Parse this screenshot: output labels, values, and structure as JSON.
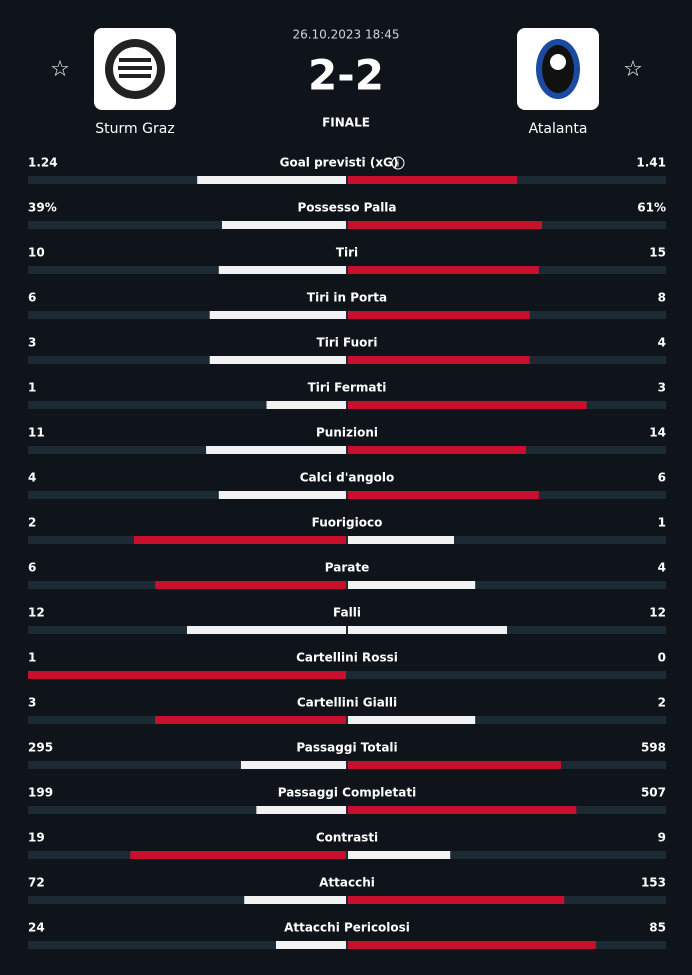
{
  "header": {
    "datetime": "26.10.2023 18:45",
    "score": "2-2",
    "status": "FINALE",
    "home_team": "Sturm Graz",
    "away_team": "Atalanta"
  },
  "stats": [
    {
      "name": "Goal previsti (xG)",
      "home": 1.24,
      "away": 1.41
    },
    {
      "name": "Possesso Palla",
      "home": {
        "value": 39,
        "label": "39%"
      },
      "away": {
        "value": 61,
        "label": "61%"
      }
    },
    {
      "name": "Tiri",
      "home": 10,
      "away": 15
    },
    {
      "name": "Tiri in Porta",
      "home": 6,
      "away": 8
    },
    {
      "name": "Tiri Fuori",
      "home": 3,
      "away": 4
    },
    {
      "name": "Tiri Fermati",
      "home": 1,
      "away": 3
    },
    {
      "name": "Punizioni",
      "home": 11,
      "away": 14
    },
    {
      "name": "Calci d'angolo",
      "home": 4,
      "away": 6
    },
    {
      "name": "Fuorigioco",
      "home": 2,
      "away": 1
    },
    {
      "name": "Parate",
      "home": 6,
      "away": 4
    },
    {
      "name": "Falli",
      "home": 12,
      "away": 12
    },
    {
      "name": "Cartellini Rossi",
      "home": 1,
      "away": 0
    },
    {
      "name": "Cartellini Gialli",
      "home": 3,
      "away": 2
    },
    {
      "name": "Passaggi Totali",
      "home": 295,
      "away": 598
    },
    {
      "name": "Passaggi Completati",
      "home": 199,
      "away": 507
    },
    {
      "name": "Contrasti",
      "home": 19,
      "away": 9
    },
    {
      "name": "Attacchi",
      "home": 72,
      "away": 153
    },
    {
      "name": "Attacchi Pericolosi",
      "home": 24,
      "away": 85
    }
  ]
}
